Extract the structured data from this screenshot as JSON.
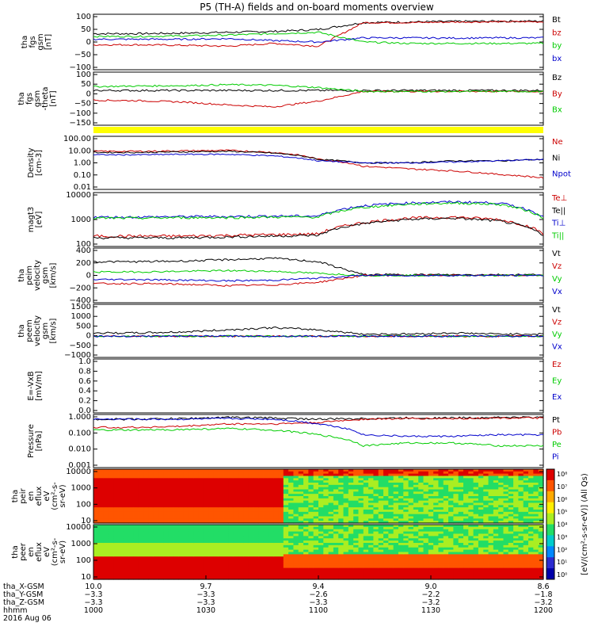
{
  "title": "P5 (TH-A) fields and on-board moments overview",
  "chart_data": [
    {
      "type": "line",
      "id": "fgs_gsm",
      "ylabel_lines": [
        "tha",
        "fgs",
        "gsm",
        "[nT]"
      ],
      "yticks": [
        "100",
        "50",
        "0",
        "−50",
        "−100"
      ],
      "ylim": [
        -100,
        100
      ],
      "series": [
        {
          "name": "Bt",
          "color": "#000000",
          "profile": [
            30,
            30,
            32,
            35,
            38,
            45,
            70,
            72,
            74,
            75,
            75
          ]
        },
        {
          "name": "bz",
          "color": "#cc0000",
          "profile": [
            -10,
            -10,
            -12,
            -15,
            -5,
            -15,
            70,
            70,
            72,
            73,
            73
          ]
        },
        {
          "name": "by",
          "color": "#00cc00",
          "profile": [
            20,
            20,
            22,
            25,
            30,
            35,
            0,
            -5,
            -5,
            -5,
            -5
          ]
        },
        {
          "name": "bx",
          "color": "#0000cc",
          "profile": [
            10,
            10,
            10,
            12,
            5,
            0,
            15,
            15,
            14,
            15,
            15
          ]
        }
      ]
    },
    {
      "type": "line",
      "id": "fgs_gsm_ang",
      "ylabel_lines": [
        "tha",
        "fgs",
        "gsm",
        "-theta",
        "[nT]"
      ],
      "yticks": [
        "100",
        "50",
        "0",
        "−50",
        "−100",
        "−150"
      ],
      "ylim": [
        -175,
        100
      ],
      "series": [
        {
          "name": "Bz",
          "color": "#000000",
          "profile": [
            5,
            5,
            5,
            5,
            5,
            5,
            5,
            5,
            5,
            5,
            5
          ]
        },
        {
          "name": "By",
          "color": "#cc0000",
          "profile": [
            -45,
            -48,
            -55,
            -70,
            -80,
            -50,
            0,
            0,
            0,
            0,
            0
          ]
        },
        {
          "name": "Bx",
          "color": "#00cc00",
          "profile": [
            25,
            28,
            30,
            35,
            32,
            20,
            0,
            0,
            0,
            0,
            0
          ]
        }
      ]
    },
    {
      "type": "bar-strip",
      "id": "mode_bar",
      "color": "#ffff00"
    },
    {
      "type": "line",
      "id": "density",
      "log": true,
      "ylabel_lines": [
        "Density",
        "[cm-3]"
      ],
      "yticks": [
        "100.00",
        "10.00",
        "1.00",
        "0.10",
        "0.01"
      ],
      "ylim": [
        0.005,
        200
      ],
      "series": [
        {
          "name": "Ne",
          "color": "#cc0000",
          "profile": [
            10,
            10,
            11,
            12,
            8,
            2,
            0.5,
            0.3,
            0.2,
            0.1,
            0.05
          ]
        },
        {
          "name": "Ni",
          "color": "#000000",
          "profile": [
            8,
            8,
            9,
            10,
            7,
            2,
            1,
            1,
            1.5,
            1.5,
            2
          ]
        },
        {
          "name": "Npot",
          "color": "#0000cc",
          "profile": [
            5,
            5,
            5.5,
            5.5,
            4,
            1.5,
            1,
            1,
            1.2,
            1.5,
            2
          ]
        }
      ]
    },
    {
      "type": "line",
      "id": "magt3",
      "log": true,
      "ylabel_lines": [
        "magt3",
        "[eV]"
      ],
      "yticks": [
        "10000",
        "1000",
        "100"
      ],
      "ylim": [
        40,
        12000
      ],
      "series": [
        {
          "name": "Te⊥",
          "color": "#cc0000",
          "profile": [
            120,
            120,
            120,
            130,
            140,
            150,
            500,
            800,
            900,
            700,
            150
          ]
        },
        {
          "name": "Te||",
          "color": "#000000",
          "profile": [
            100,
            100,
            100,
            110,
            120,
            130,
            450,
            700,
            800,
            600,
            130
          ]
        },
        {
          "name": "Ti⊥",
          "color": "#0000cc",
          "profile": [
            900,
            900,
            950,
            950,
            1000,
            1000,
            3000,
            4000,
            4500,
            4000,
            900
          ]
        },
        {
          "name": "Ti||",
          "color": "#00cc00",
          "profile": [
            800,
            800,
            850,
            850,
            900,
            900,
            2500,
            3500,
            4000,
            3500,
            800
          ]
        }
      ]
    },
    {
      "type": "line",
      "id": "peim_velocity",
      "ylabel_lines": [
        "tha",
        "peim",
        "velocity",
        "gsm",
        "[km/s]"
      ],
      "yticks": [
        "400",
        "200",
        "0",
        "−200",
        "−400"
      ],
      "ylim": [
        -400,
        400
      ],
      "series": [
        {
          "name": "Vt",
          "color": "#000000",
          "profile": [
            200,
            200,
            210,
            230,
            250,
            200,
            10,
            10,
            10,
            10,
            10
          ]
        },
        {
          "name": "Vz",
          "color": "#cc0000",
          "profile": [
            -120,
            -120,
            -130,
            -150,
            -140,
            -100,
            0,
            0,
            0,
            0,
            0
          ]
        },
        {
          "name": "Vy",
          "color": "#00cc00",
          "profile": [
            50,
            50,
            60,
            70,
            60,
            30,
            0,
            0,
            0,
            0,
            0
          ]
        },
        {
          "name": "Vx",
          "color": "#0000cc",
          "profile": [
            -60,
            -60,
            -70,
            -80,
            -70,
            -40,
            0,
            0,
            0,
            0,
            0
          ]
        }
      ]
    },
    {
      "type": "line",
      "id": "peem_velocity",
      "ylabel_lines": [
        "tha",
        "peem",
        "velocity",
        "gsm",
        "[km/s]"
      ],
      "yticks": [
        "1500",
        "1000",
        "500",
        "0",
        "−500",
        "−1000"
      ],
      "ylim": [
        -1000,
        1500
      ],
      "series": [
        {
          "name": "Vt",
          "color": "#000000",
          "profile": [
            150,
            150,
            200,
            300,
            400,
            300,
            100,
            100,
            150,
            100,
            100
          ]
        },
        {
          "name": "Vz",
          "color": "#cc0000",
          "profile": [
            0,
            0,
            0,
            0,
            0,
            0,
            0,
            0,
            0,
            0,
            0
          ]
        },
        {
          "name": "Vy",
          "color": "#00cc00",
          "profile": [
            0,
            0,
            0,
            0,
            0,
            0,
            0,
            0,
            0,
            0,
            0
          ]
        },
        {
          "name": "Vx",
          "color": "#0000cc",
          "profile": [
            0,
            0,
            0,
            0,
            0,
            0,
            0,
            0,
            0,
            0,
            0
          ]
        }
      ]
    },
    {
      "type": "line",
      "id": "efield",
      "empty": true,
      "ylabel_lines": [
        "E=-VxB",
        "[mV/m]"
      ],
      "yticks": [
        "1.0",
        "0.8",
        "0.6",
        "0.4",
        "0.2",
        "0.0"
      ],
      "ylim": [
        0,
        1
      ],
      "series": [
        {
          "name": "Ez",
          "color": "#cc0000"
        },
        {
          "name": "Ey",
          "color": "#00cc00"
        },
        {
          "name": "Ex",
          "color": "#0000cc"
        }
      ]
    },
    {
      "type": "line",
      "id": "pressure",
      "log": true,
      "ylabel_lines": [
        "Pressure",
        "[nPa]"
      ],
      "yticks": [
        "1.000",
        "0.100",
        "0.010",
        "0.001"
      ],
      "ylim": [
        0.0008,
        2
      ],
      "series": [
        {
          "name": "Pt",
          "color": "#000000",
          "profile": [
            1,
            1,
            1.1,
            1.3,
            1.2,
            1.0,
            1.1,
            1.2,
            1.2,
            1.3,
            1.3
          ]
        },
        {
          "name": "Pb",
          "color": "#cc0000",
          "profile": [
            0.3,
            0.3,
            0.35,
            0.5,
            0.5,
            0.6,
            1.0,
            1.1,
            1.1,
            1.2,
            1.2
          ]
        },
        {
          "name": "Pe",
          "color": "#00cc00",
          "profile": [
            0.2,
            0.2,
            0.22,
            0.25,
            0.2,
            0.1,
            0.02,
            0.03,
            0.03,
            0.02,
            0.02
          ]
        },
        {
          "name": "Pi",
          "color": "#0000cc",
          "profile": [
            1,
            1,
            1,
            1.1,
            1,
            0.5,
            0.1,
            0.08,
            0.08,
            0.1,
            0.1
          ]
        }
      ]
    },
    {
      "type": "heatmap",
      "id": "peir",
      "ylabel_lines": [
        "tha",
        "peir",
        "en",
        "eflux",
        "eV",
        "(cm²-s-",
        "sr-eV)"
      ],
      "yticks": [
        "10000",
        "1000",
        "100",
        "10"
      ],
      "ylim": [
        5,
        25000
      ]
    },
    {
      "type": "heatmap",
      "id": "peer",
      "ylabel_lines": [
        "tha",
        "peer",
        "en",
        "eflux",
        "eV",
        "(cm²-s-",
        "sr-eV)"
      ],
      "yticks": [
        "10000",
        "1000",
        "100",
        "10"
      ],
      "ylim": [
        5,
        25000
      ]
    }
  ],
  "colorbar": {
    "label": "[eV/(cm²-s-sr-eV)] (All Qs)",
    "ticks": [
      "10⁸",
      "10⁷",
      "10⁶",
      "10⁵",
      "10⁴",
      "10³",
      "10²",
      "10¹",
      "10⁰"
    ]
  },
  "x_axis": {
    "rows": [
      {
        "label": "tha_X-GSM",
        "values": [
          "10.0",
          "9.7",
          "9.4",
          "9.0",
          "8.6"
        ]
      },
      {
        "label": "tha_Y-GSM",
        "values": [
          "−3.3",
          "−3.3",
          "−2.6",
          "−2.2",
          "−1.8"
        ]
      },
      {
        "label": "tha_Z-GSM",
        "values": [
          "−3.3",
          "−3.3",
          "−3.3",
          "−3.2",
          "−3.2"
        ]
      },
      {
        "label": "hhmm",
        "values": [
          "1000",
          "1030",
          "1100",
          "1130",
          "1200"
        ]
      }
    ],
    "date": "2016 Aug 06"
  }
}
